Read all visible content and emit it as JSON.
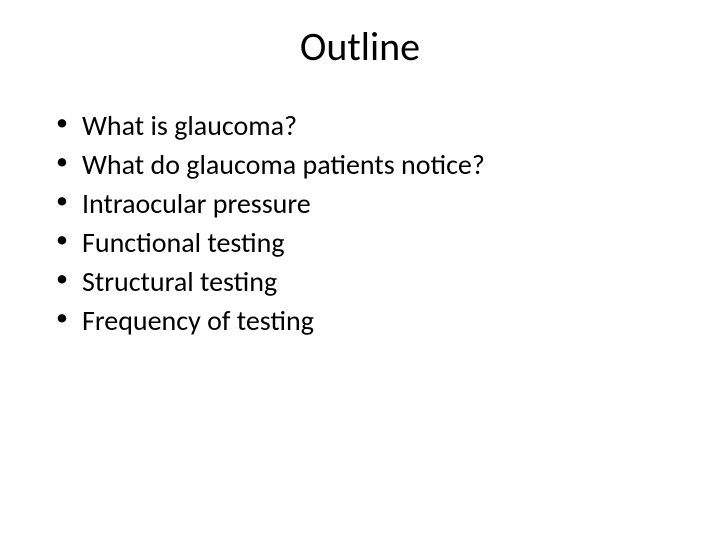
{
  "slide": {
    "title": "Outline",
    "bullets": [
      "What is glaucoma?",
      "What do glaucoma patients notice?",
      "Intraocular pressure",
      "Functional testing",
      "Structural testing",
      "Frequency of testing"
    ],
    "style": {
      "background_color": "#ffffff",
      "text_color": "#000000",
      "title_fontsize": 40,
      "bullet_fontsize": 28,
      "font_family": "Calibri"
    }
  }
}
